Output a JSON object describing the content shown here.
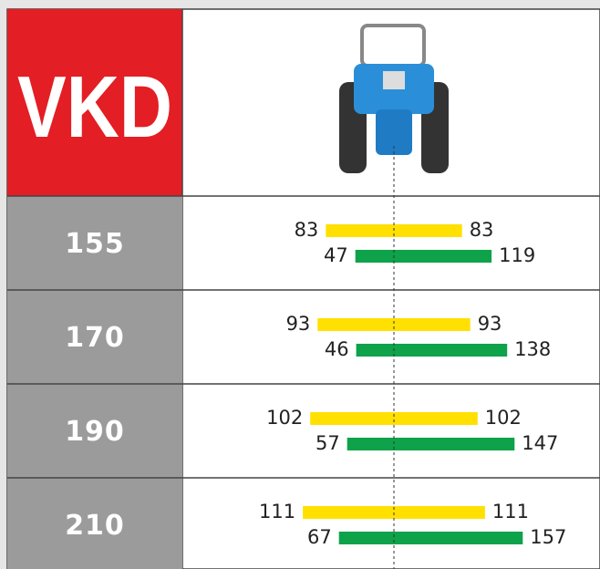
{
  "header": {
    "title": "VKD"
  },
  "rows": [
    {
      "label": "155",
      "yellow": {
        "left": 83,
        "right": 83
      },
      "green": {
        "left": 47,
        "right": 119
      }
    },
    {
      "label": "170",
      "yellow": {
        "left": 93,
        "right": 93
      },
      "green": {
        "left": 46,
        "right": 138
      }
    },
    {
      "label": "190",
      "yellow": {
        "left": 102,
        "right": 102
      },
      "green": {
        "left": 57,
        "right": 147
      }
    },
    {
      "label": "210",
      "yellow": {
        "left": 111,
        "right": 111
      },
      "green": {
        "left": 67,
        "right": 157
      }
    }
  ]
}
